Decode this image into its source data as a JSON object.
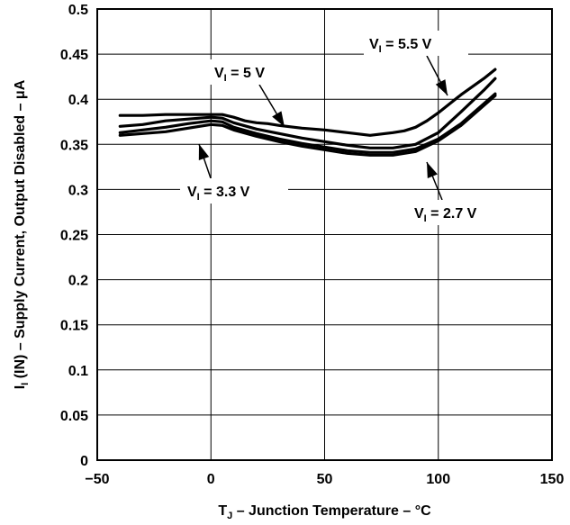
{
  "chart_data": {
    "type": "line",
    "xlabel": {
      "main": "T",
      "sub": "J",
      "rest": " – Junction Temperature – °C"
    },
    "ylabel": {
      "main": "I",
      "sub": "I",
      "rest": " (IN) – Supply Current, Output Disabled – μA"
    },
    "xlim": [
      -50,
      150
    ],
    "ylim": [
      0,
      0.5
    ],
    "xticks": [
      -50,
      0,
      50,
      100,
      150
    ],
    "xtick_labels": [
      "−50",
      "0",
      "50",
      "100",
      "150"
    ],
    "yticks": [
      0,
      0.05,
      0.1,
      0.15,
      0.2,
      0.25,
      0.3,
      0.35,
      0.4,
      0.45,
      0.5
    ],
    "ytick_labels": [
      "0",
      "0.05",
      "0.1",
      "0.15",
      "0.2",
      "0.25",
      "0.3",
      "0.35",
      "0.4",
      "0.45",
      "0.5"
    ],
    "grid": true,
    "series": [
      {
        "name": "V_I = 5 V",
        "points": [
          [
            -40,
            0.382
          ],
          [
            -30,
            0.382
          ],
          [
            -20,
            0.383
          ],
          [
            -10,
            0.383
          ],
          [
            0,
            0.383
          ],
          [
            5,
            0.383
          ],
          [
            10,
            0.38
          ],
          [
            15,
            0.376
          ],
          [
            20,
            0.374
          ],
          [
            25,
            0.373
          ],
          [
            30,
            0.371
          ],
          [
            40,
            0.368
          ],
          [
            50,
            0.366
          ],
          [
            60,
            0.363
          ],
          [
            70,
            0.36
          ],
          [
            80,
            0.363
          ],
          [
            85,
            0.365
          ],
          [
            90,
            0.369
          ],
          [
            95,
            0.376
          ],
          [
            100,
            0.385
          ],
          [
            110,
            0.405
          ],
          [
            120,
            0.423
          ],
          [
            125,
            0.433
          ]
        ]
      },
      {
        "name": "V_I = 5.5 V",
        "points": [
          [
            -40,
            0.37
          ],
          [
            -30,
            0.372
          ],
          [
            -20,
            0.376
          ],
          [
            -10,
            0.378
          ],
          [
            0,
            0.38
          ],
          [
            5,
            0.379
          ],
          [
            10,
            0.374
          ],
          [
            20,
            0.367
          ],
          [
            30,
            0.362
          ],
          [
            40,
            0.357
          ],
          [
            50,
            0.353
          ],
          [
            60,
            0.349
          ],
          [
            70,
            0.346
          ],
          [
            80,
            0.346
          ],
          [
            90,
            0.35
          ],
          [
            100,
            0.363
          ],
          [
            110,
            0.386
          ],
          [
            120,
            0.41
          ],
          [
            125,
            0.423
          ]
        ]
      },
      {
        "name": "V_I = 3.3 V",
        "points": [
          [
            -40,
            0.363
          ],
          [
            -30,
            0.366
          ],
          [
            -20,
            0.369
          ],
          [
            -10,
            0.373
          ],
          [
            0,
            0.376
          ],
          [
            5,
            0.375
          ],
          [
            10,
            0.369
          ],
          [
            20,
            0.362
          ],
          [
            30,
            0.356
          ],
          [
            40,
            0.351
          ],
          [
            50,
            0.347
          ],
          [
            60,
            0.343
          ],
          [
            70,
            0.341
          ],
          [
            80,
            0.341
          ],
          [
            90,
            0.345
          ],
          [
            100,
            0.356
          ],
          [
            110,
            0.373
          ],
          [
            120,
            0.395
          ],
          [
            125,
            0.406
          ]
        ]
      },
      {
        "name": "V_I = 2.7 V",
        "points": [
          [
            -40,
            0.36
          ],
          [
            -30,
            0.362
          ],
          [
            -20,
            0.364
          ],
          [
            -10,
            0.368
          ],
          [
            0,
            0.372
          ],
          [
            5,
            0.371
          ],
          [
            10,
            0.366
          ],
          [
            20,
            0.359
          ],
          [
            30,
            0.353
          ],
          [
            40,
            0.348
          ],
          [
            50,
            0.344
          ],
          [
            60,
            0.34
          ],
          [
            70,
            0.338
          ],
          [
            80,
            0.338
          ],
          [
            90,
            0.342
          ],
          [
            100,
            0.354
          ],
          [
            110,
            0.371
          ],
          [
            120,
            0.393
          ],
          [
            125,
            0.404
          ]
        ]
      }
    ],
    "annotations": [
      {
        "main": "V",
        "sub": "I",
        "rest": " = 5 V"
      },
      {
        "main": "V",
        "sub": "I",
        "rest": " = 5.5 V"
      },
      {
        "main": "V",
        "sub": "I",
        "rest": " = 3.3 V"
      },
      {
        "main": "V",
        "sub": "I",
        "rest": " = 2.7 V"
      }
    ]
  }
}
